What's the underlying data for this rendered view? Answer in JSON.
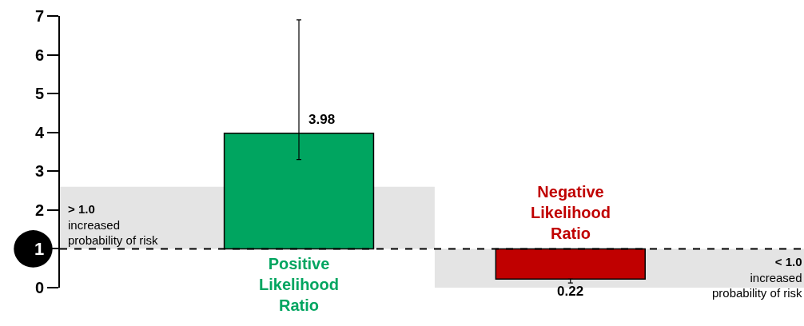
{
  "chart_data": {
    "type": "bar",
    "categories": [
      "Positive\nLikelihood\nRatio",
      "Negative\nLikelihood\nRatio"
    ],
    "values": [
      2.98,
      -0.78
    ],
    "base": [
      1,
      1
    ],
    "colors": [
      "#00a560",
      "#c00000"
    ],
    "value_labels": [
      "3.98",
      "0.22"
    ],
    "errors": [
      [
        3.3,
        6.9
      ],
      [
        0.12,
        0.22
      ]
    ],
    "ylim": [
      0,
      7
    ],
    "yticks": [
      0,
      1,
      2,
      3,
      4,
      5,
      6,
      7
    ],
    "ref_lines": [
      {
        "axis": "y",
        "value": 1,
        "label": "1",
        "line_style": "dashed",
        "color": "#000000"
      }
    ],
    "bands": [
      {
        "axis": "y",
        "from": 1,
        "to": 2.6,
        "label": "> 1.0\nincreased\nprobability of risk",
        "color": "#d9d9d9"
      },
      {
        "axis": "y",
        "from": 0,
        "to": 1,
        "label": "< 1.0\nincreased\nprobability of risk",
        "color": "#d9d9d9"
      }
    ],
    "grid": false,
    "legend": false
  }
}
